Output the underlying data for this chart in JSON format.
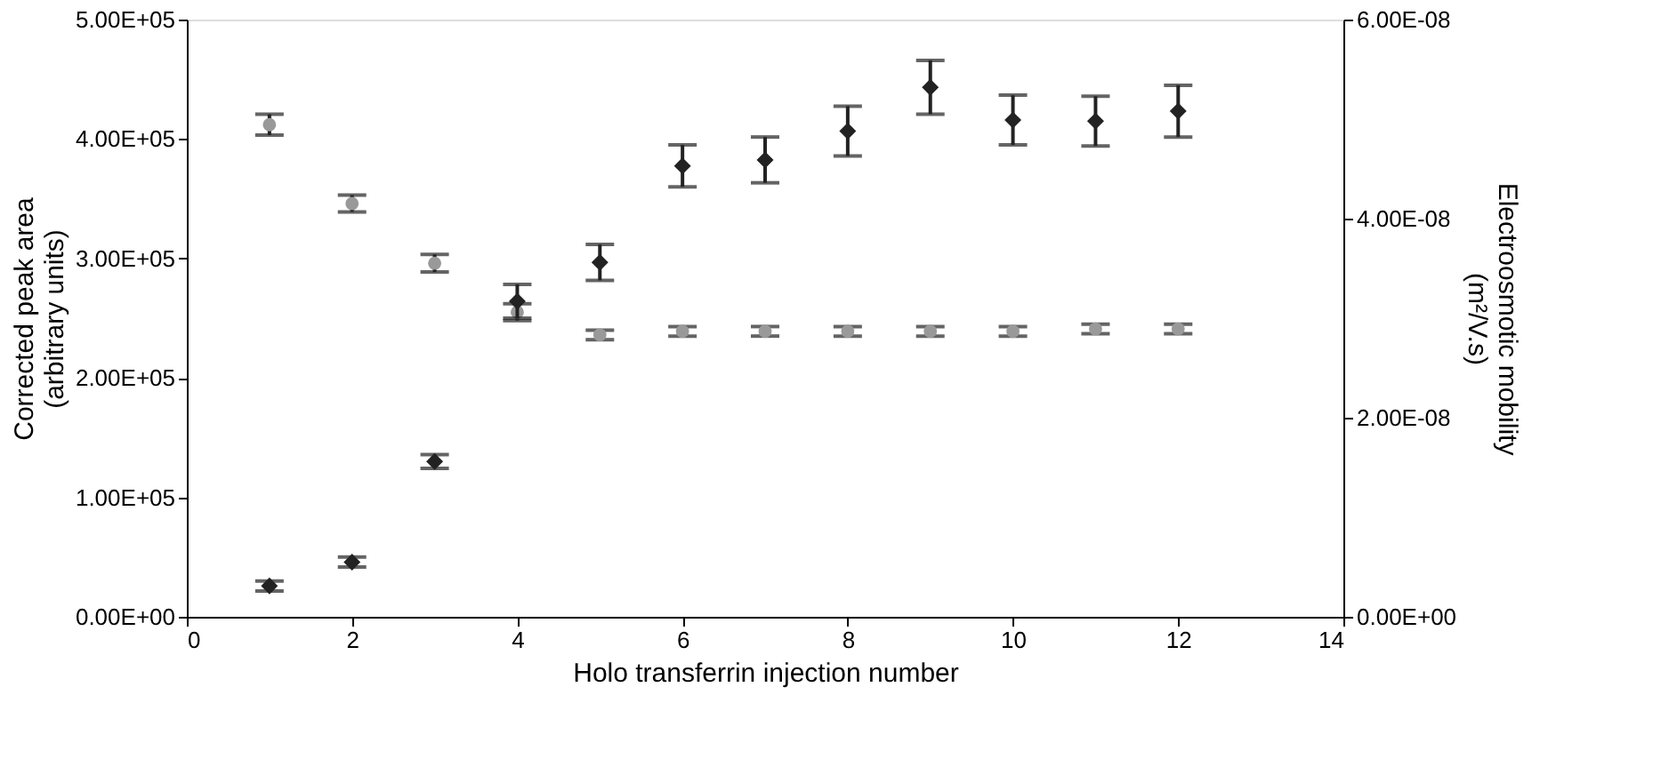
{
  "chart_data": {
    "type": "scatter",
    "xlabel": "Holo transferrin injection number",
    "ylabel": "Corrected peak area\n(arbitrary units)",
    "y2label": "Electroosmotic mobility\n(m²/V.s)",
    "x": [
      1,
      2,
      3,
      4,
      5,
      6,
      7,
      8,
      9,
      10,
      11,
      12
    ],
    "xlim": [
      0,
      14
    ],
    "xticks": [
      0,
      2,
      4,
      6,
      8,
      10,
      12,
      14
    ],
    "ylim": [
      0,
      500000
    ],
    "yticks": [
      {
        "value": 0,
        "label": "0.00E+00"
      },
      {
        "value": 100000,
        "label": "1.00E+05"
      },
      {
        "value": 200000,
        "label": "2.00E+05"
      },
      {
        "value": 300000,
        "label": "3.00E+05"
      },
      {
        "value": 400000,
        "label": "4.00E+05"
      },
      {
        "value": 500000,
        "label": "5.00E+05"
      }
    ],
    "y2lim": [
      0,
      6e-08
    ],
    "y2ticks": [
      {
        "value": 0,
        "label": "0.00E+00"
      },
      {
        "value": 2e-08,
        "label": "2.00E-08"
      },
      {
        "value": 4e-08,
        "label": "4.00E-08"
      },
      {
        "value": 6e-08,
        "label": "6.00E-08"
      }
    ],
    "grid": false,
    "series": [
      {
        "color": "#999999",
        "marker": "circle",
        "values": [
          412000,
          346000,
          296000,
          255000,
          236000,
          239000,
          239000,
          239000,
          239000,
          239000,
          241000,
          241000
        ],
        "errors": [
          8700,
          7000,
          7400,
          7000,
          4000,
          4000,
          4000,
          4000,
          4000,
          4000,
          4000,
          4000
        ]
      },
      {
        "color": "#222222",
        "marker": "diamond",
        "axis": "y2",
        "values": [
          3.1e-09,
          5.5e-09,
          1.56e-08,
          3.17e-08,
          3.56e-08,
          4.53e-08,
          4.59e-08,
          4.88e-08,
          5.32e-08,
          4.99e-08,
          4.98e-08,
          5.08e-08
        ],
        "errors": [
          5e-10,
          5e-10,
          7e-10,
          1.7e-09,
          1.8e-09,
          2.1e-09,
          2.3e-09,
          2.5e-09,
          2.7e-09,
          2.5e-09,
          2.5e-09,
          2.6e-09
        ]
      }
    ]
  }
}
